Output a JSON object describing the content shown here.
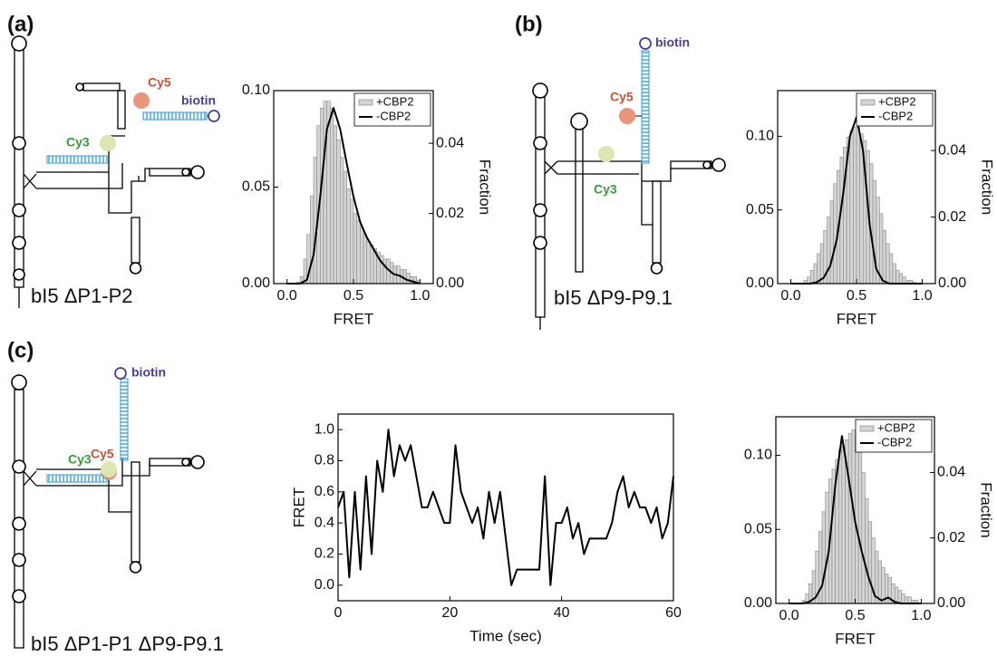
{
  "panels": [
    {
      "label": "(a)",
      "cy5": "Cy5",
      "biotin": "biotin",
      "cy3": "Cy3",
      "caption": "bI5 ΔP1-P2"
    },
    {
      "label": "(b)",
      "cy5": "Cy5",
      "biotin": "biotin",
      "cy3": "Cy3",
      "caption": "bI5 ΔP9-P9.1"
    },
    {
      "label": "(c)",
      "cy5": "Cy5",
      "biotin": "biotin",
      "cy3": "Cy3",
      "caption": "bI5 ΔP1-P1 ΔP9-P9.1"
    }
  ],
  "chart_data": [
    {
      "type": "histogram",
      "xlabel": "FRET",
      "y2label": "Fraction",
      "legend": "upper right",
      "bins": [
        0,
        0.025,
        0.05,
        0.075,
        0.1,
        0.125,
        0.15,
        0.175,
        0.2,
        0.225,
        0.25,
        0.275,
        0.3,
        0.325,
        0.35,
        0.375,
        0.4,
        0.425,
        0.45,
        0.475,
        0.5,
        0.525,
        0.55,
        0.575,
        0.6,
        0.625,
        0.65,
        0.675,
        0.7,
        0.725,
        0.75,
        0.775,
        0.8,
        0.825,
        0.85,
        0.875,
        0.9,
        0.925,
        0.95,
        0.975,
        1
      ],
      "xlim": [
        -0.1,
        1.1
      ],
      "xticks": [
        {
          "value": 0,
          "label": "0.0"
        },
        0.5,
        {
          "value": 1,
          "label": "1.0"
        }
      ],
      "ylim": [
        0,
        0.1
      ],
      "yticks": [
        {
          "value": 0,
          "label": "0.00"
        },
        0.05,
        {
          "value": 0.1,
          "label": "0.10"
        }
      ],
      "y2lim": [
        0,
        0.055
      ],
      "y2ticks": [
        {
          "value": 0,
          "label": "0.00"
        },
        0.02,
        0.04
      ],
      "series": [
        {
          "name": "+CBP2",
          "color": "#d4d4d4",
          "axis": "y2",
          "values": [
            0,
            0,
            0,
            0.0005,
            0.002,
            0.007,
            0.014,
            0.025,
            0.036,
            0.045,
            0.05,
            0.052,
            0.052,
            0.05,
            0.045,
            0.041,
            0.036,
            0.032,
            0.027,
            0.024,
            0.02,
            0.018,
            0.016,
            0.014,
            0.012,
            0.011,
            0.01,
            0.009,
            0.008,
            0.007,
            0.007,
            0.006,
            0.005,
            0.005,
            0.004,
            0.004,
            0.003,
            0.002,
            0.002,
            0.001
          ]
        },
        {
          "name": "-CBP2",
          "color": "#000000",
          "type": "line",
          "x": [
            0,
            0.05,
            0.1,
            0.15,
            0.2,
            0.25,
            0.3,
            0.35,
            0.4,
            0.45,
            0.5,
            0.55,
            0.6,
            0.65,
            0.7,
            0.75,
            0.8,
            0.85,
            0.9,
            0.95,
            1
          ],
          "values": [
            0,
            0,
            0,
            0.002,
            0.015,
            0.045,
            0.08,
            0.091,
            0.08,
            0.062,
            0.045,
            0.032,
            0.024,
            0.018,
            0.012,
            0.008,
            0.005,
            0.004,
            0.002,
            0.001,
            0
          ]
        }
      ]
    },
    {
      "type": "histogram",
      "xlabel": "FRET",
      "y2label": "Fraction",
      "legend": "upper right",
      "bins": [
        0,
        0.025,
        0.05,
        0.075,
        0.1,
        0.125,
        0.15,
        0.175,
        0.2,
        0.225,
        0.25,
        0.275,
        0.3,
        0.325,
        0.35,
        0.375,
        0.4,
        0.425,
        0.45,
        0.475,
        0.5,
        0.525,
        0.55,
        0.575,
        0.6,
        0.625,
        0.65,
        0.675,
        0.7,
        0.725,
        0.75,
        0.775,
        0.8,
        0.825,
        0.85,
        0.875,
        0.9,
        0.925,
        0.95,
        0.975,
        1
      ],
      "xlim": [
        -0.1,
        1.1
      ],
      "xticks": [
        {
          "value": 0,
          "label": "0.0"
        },
        0.5,
        {
          "value": 1,
          "label": "1.0"
        }
      ],
      "ylim": [
        0,
        0.131
      ],
      "yticks": [
        {
          "value": 0,
          "label": "0.00"
        },
        0.05,
        {
          "value": 0.1,
          "label": "0.10"
        }
      ],
      "y2lim": [
        0,
        0.058
      ],
      "y2ticks": [
        {
          "value": 0,
          "label": "0.00"
        },
        0.02,
        0.04
      ],
      "series": [
        {
          "name": "+CBP2",
          "color": "#d4d4d4",
          "axis": "y2",
          "values": [
            0,
            0,
            0,
            0,
            0.001,
            0.002,
            0.004,
            0.006,
            0.009,
            0.012,
            0.016,
            0.02,
            0.025,
            0.03,
            0.034,
            0.038,
            0.041,
            0.044,
            0.046,
            0.047,
            0.047,
            0.045,
            0.043,
            0.04,
            0.036,
            0.031,
            0.026,
            0.021,
            0.016,
            0.012,
            0.009,
            0.006,
            0.004,
            0.003,
            0.002,
            0.001,
            0.001,
            0.0005,
            0,
            0
          ]
        },
        {
          "name": "-CBP2",
          "color": "#000000",
          "type": "line",
          "x": [
            0,
            0.05,
            0.1,
            0.15,
            0.2,
            0.25,
            0.3,
            0.35,
            0.4,
            0.45,
            0.5,
            0.55,
            0.6,
            0.65,
            0.7,
            0.75,
            0.8,
            0.85,
            0.9,
            0.95,
            1
          ],
          "values": [
            0,
            0,
            0,
            0,
            0.001,
            0.004,
            0.012,
            0.03,
            0.062,
            0.1,
            0.113,
            0.09,
            0.04,
            0.01,
            0.002,
            0,
            0,
            0,
            0,
            0,
            0
          ]
        }
      ]
    },
    {
      "type": "line",
      "xlabel": "Time (sec)",
      "ylabel": "FRET",
      "x": [
        0,
        1,
        2,
        3,
        4,
        5,
        6,
        7,
        8,
        9,
        10,
        11,
        12,
        13,
        14,
        15,
        16,
        17,
        18,
        19,
        20,
        21,
        22,
        23,
        24,
        25,
        26,
        27,
        28,
        29,
        30,
        31,
        32,
        33,
        34,
        35,
        36,
        37,
        38,
        39,
        40,
        41,
        42,
        43,
        44,
        45,
        46,
        47,
        48,
        49,
        50,
        51,
        52,
        53,
        54,
        55,
        56,
        57,
        58,
        59,
        60
      ],
      "xlim": [
        0,
        60
      ],
      "xticks": [
        0,
        20,
        40,
        60
      ],
      "ylim": [
        -0.1,
        1.1
      ],
      "yticks": [
        {
          "value": 0,
          "label": "0.0"
        },
        0.2,
        0.4,
        0.6,
        0.8,
        {
          "value": 1,
          "label": "1.0"
        }
      ],
      "series": [
        {
          "color": "#000000",
          "values": [
            0.5,
            0.6,
            0.05,
            0.6,
            0.1,
            0.7,
            0.2,
            0.8,
            0.6,
            1.0,
            0.7,
            0.9,
            0.8,
            0.9,
            0.7,
            0.5,
            0.5,
            0.6,
            0.5,
            0.4,
            0.4,
            0.9,
            0.6,
            0.5,
            0.4,
            0.5,
            0.3,
            0.6,
            0.4,
            0.6,
            0.3,
            0.0,
            0.1,
            0.1,
            0.1,
            0.1,
            0.1,
            0.7,
            0.0,
            0.4,
            0.4,
            0.5,
            0.3,
            0.4,
            0.2,
            0.3,
            0.3,
            0.3,
            0.3,
            0.4,
            0.6,
            0.7,
            0.5,
            0.6,
            0.5,
            0.5,
            0.4,
            0.5,
            0.3,
            0.4,
            0.7
          ]
        }
      ]
    },
    {
      "type": "histogram",
      "xlabel": "FRET",
      "y2label": "Fraction",
      "legend": "upper right",
      "bins": [
        0,
        0.025,
        0.05,
        0.075,
        0.1,
        0.125,
        0.15,
        0.175,
        0.2,
        0.225,
        0.25,
        0.275,
        0.3,
        0.325,
        0.35,
        0.375,
        0.4,
        0.425,
        0.45,
        0.475,
        0.5,
        0.525,
        0.55,
        0.575,
        0.6,
        0.625,
        0.65,
        0.675,
        0.7,
        0.725,
        0.75,
        0.775,
        0.8,
        0.825,
        0.85,
        0.875,
        0.9,
        0.925,
        0.95,
        0.975,
        1
      ],
      "xlim": [
        -0.1,
        1.1
      ],
      "xticks": [
        {
          "value": 0,
          "label": "0.0"
        },
        0.5,
        {
          "value": 1,
          "label": "1.0"
        }
      ],
      "ylim": [
        0,
        0.126
      ],
      "yticks": [
        {
          "value": 0,
          "label": "0.00"
        },
        0.05,
        {
          "value": 0.1,
          "label": "0.10"
        }
      ],
      "y2lim": [
        0,
        0.057
      ],
      "y2ticks": [
        {
          "value": 0,
          "label": "0.00"
        },
        0.02,
        0.04
      ],
      "series": [
        {
          "name": "+CBP2",
          "color": "#d4d4d4",
          "axis": "y2",
          "values": [
            0,
            0,
            0,
            0,
            0.001,
            0.003,
            0.006,
            0.01,
            0.016,
            0.022,
            0.028,
            0.034,
            0.038,
            0.041,
            0.044,
            0.047,
            0.048,
            0.05,
            0.052,
            0.053,
            0.051,
            0.047,
            0.04,
            0.032,
            0.025,
            0.02,
            0.016,
            0.013,
            0.011,
            0.009,
            0.008,
            0.006,
            0.005,
            0.004,
            0.003,
            0.002,
            0.002,
            0.001,
            0.001,
            0
          ]
        },
        {
          "name": "-CBP2",
          "color": "#000000",
          "type": "line",
          "x": [
            0,
            0.05,
            0.1,
            0.15,
            0.2,
            0.25,
            0.3,
            0.35,
            0.4,
            0.45,
            0.5,
            0.55,
            0.6,
            0.65,
            0.7,
            0.75,
            0.8,
            0.85,
            0.9,
            0.95,
            1
          ],
          "values": [
            0,
            0,
            0,
            0.001,
            0.004,
            0.012,
            0.035,
            0.08,
            0.113,
            0.085,
            0.055,
            0.035,
            0.018,
            0.005,
            0.002,
            0.004,
            0.001,
            0,
            0,
            0,
            0
          ]
        }
      ]
    }
  ]
}
